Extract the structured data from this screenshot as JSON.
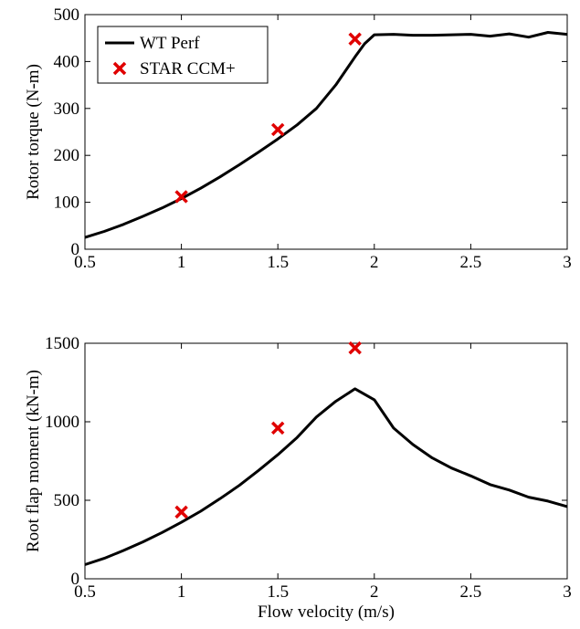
{
  "colors": {
    "model_line": "#000000",
    "cfd_marker": "#e00000",
    "axes": "#000000",
    "background": "#ffffff"
  },
  "chart_data": [
    {
      "type": "line",
      "xlabel": "",
      "ylabel": "Rotor torque (N-m)",
      "xlim": [
        0.5,
        3
      ],
      "ylim": [
        0,
        500
      ],
      "xticks": [
        "0.5",
        "1",
        "1.5",
        "2",
        "2.5",
        "3"
      ],
      "yticks": [
        "0",
        "100",
        "200",
        "300",
        "400",
        "500"
      ],
      "grid": false,
      "legend": "top-left",
      "series": [
        {
          "name": "WT Perf",
          "style": "line",
          "x": [
            0.5,
            0.6,
            0.7,
            0.8,
            0.9,
            1.0,
            1.1,
            1.2,
            1.3,
            1.4,
            1.5,
            1.6,
            1.7,
            1.8,
            1.9,
            1.95,
            2.0,
            2.1,
            2.2,
            2.3,
            2.4,
            2.5,
            2.6,
            2.7,
            2.8,
            2.9,
            3.0
          ],
          "y": [
            25,
            38,
            53,
            70,
            88,
            108,
            130,
            154,
            180,
            207,
            235,
            265,
            300,
            350,
            410,
            438,
            457,
            458,
            456,
            456,
            457,
            458,
            454,
            459,
            452,
            462,
            458
          ]
        },
        {
          "name": "STAR CCM+",
          "style": "marker",
          "x": [
            1.0,
            1.5,
            1.9
          ],
          "y": [
            112,
            255,
            448
          ]
        }
      ]
    },
    {
      "type": "line",
      "xlabel": "Flow velocity (m/s)",
      "ylabel": "Root flap moment (kN-m)",
      "xlim": [
        0.5,
        3
      ],
      "ylim": [
        0,
        1500
      ],
      "xticks": [
        "0.5",
        "1",
        "1.5",
        "2",
        "2.5",
        "3"
      ],
      "yticks": [
        "0",
        "500",
        "1000",
        "1500"
      ],
      "grid": false,
      "series": [
        {
          "name": "WT Perf",
          "style": "line",
          "x": [
            0.5,
            0.6,
            0.7,
            0.8,
            0.9,
            1.0,
            1.1,
            1.2,
            1.3,
            1.4,
            1.5,
            1.6,
            1.7,
            1.8,
            1.9,
            2.0,
            2.1,
            2.2,
            2.3,
            2.4,
            2.5,
            2.6,
            2.7,
            2.8,
            2.9,
            3.0
          ],
          "y": [
            90,
            130,
            180,
            235,
            295,
            360,
            430,
            510,
            595,
            690,
            790,
            900,
            1030,
            1130,
            1210,
            1140,
            960,
            855,
            770,
            705,
            655,
            600,
            565,
            520,
            495,
            460
          ]
        },
        {
          "name": "STAR CCM+",
          "style": "marker",
          "x": [
            1.0,
            1.5,
            1.9
          ],
          "y": [
            425,
            960,
            1470
          ]
        }
      ]
    }
  ]
}
